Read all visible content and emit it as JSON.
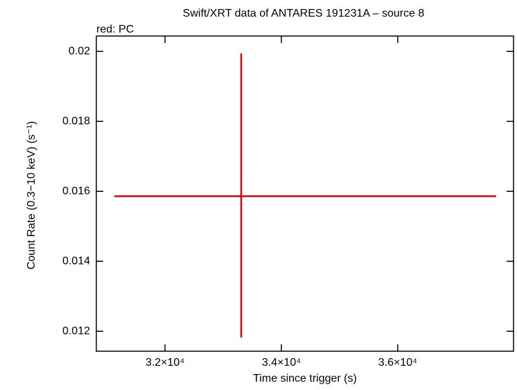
{
  "chart_data": {
    "type": "errorbar",
    "title": "Swift/XRT data of ANTARES 191231A – source 8",
    "subtitle": "red: PC",
    "xlabel": "Time since trigger (s)",
    "ylabel": "Count Rate (0.3−10 keV) (s⁻¹)",
    "series": [
      {
        "color": "#e00000",
        "x": [
          33310
        ],
        "y": [
          0.01586
        ],
        "xerr": [
          [
            2179,
            4380
          ]
        ],
        "yerr": [
          [
            0.00404,
            0.00408
          ]
        ]
      }
    ],
    "xlim": [
      30820,
      37990
    ],
    "ylim": [
      0.01143,
      0.02044
    ],
    "xticks": [
      {
        "value": 32000,
        "label": "3.2×10⁴"
      },
      {
        "value": 34000,
        "label": "3.4×10⁴"
      },
      {
        "value": 36000,
        "label": "3.6×10⁴"
      }
    ],
    "yticks": [
      0.012,
      0.014,
      0.016,
      0.018,
      0.02
    ]
  }
}
